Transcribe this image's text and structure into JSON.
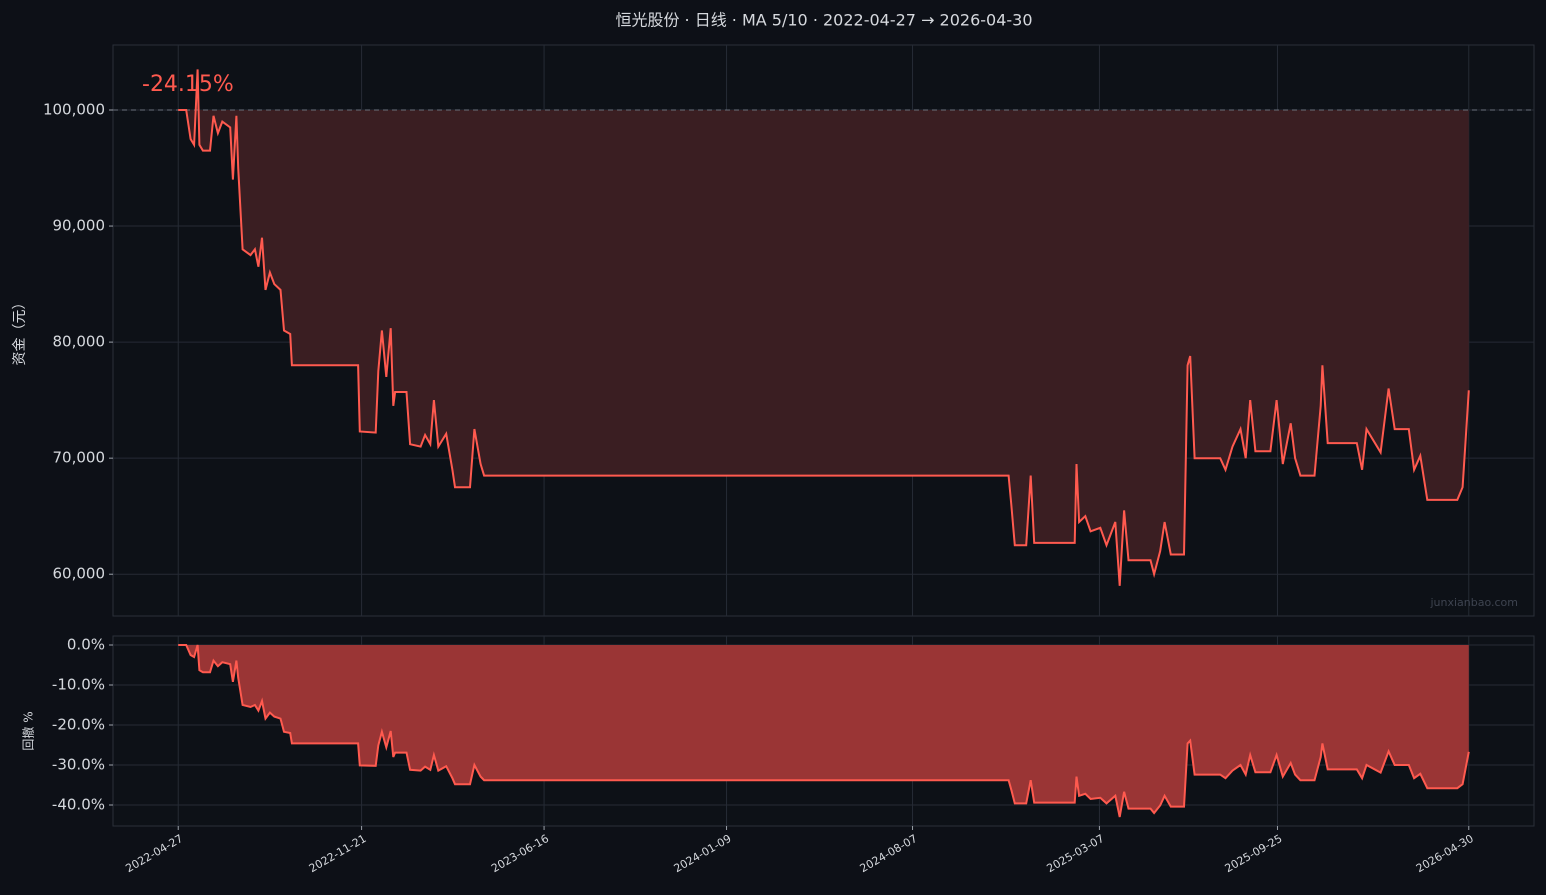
{
  "chart_data": [
    {
      "type": "line",
      "title": "恒光股份 · 日线 · MA 5/10 · 2022-04-27 → 2026-04-30",
      "ylabel": "资金（元）",
      "annotation": "-24.15%",
      "watermark": "junxianbao.com",
      "baseline": 100000,
      "fill": "#3a1e22",
      "x": [
        "2022-04-27",
        "2022-05-06",
        "2022-05-11",
        "2022-05-15",
        "2022-05-19",
        "2022-05-21",
        "2022-05-25",
        "2022-06-02",
        "2022-06-06",
        "2022-06-11",
        "2022-06-16",
        "2022-06-25",
        "2022-06-28",
        "2022-07-02",
        "2022-07-04",
        "2022-07-09",
        "2022-07-18",
        "2022-07-23",
        "2022-07-27",
        "2022-07-31",
        "2022-08-04",
        "2022-08-09",
        "2022-08-14",
        "2022-08-21",
        "2022-08-25",
        "2022-09-01",
        "2022-09-03",
        "2022-11-17",
        "2022-11-19",
        "2022-12-07",
        "2022-12-10",
        "2022-12-14",
        "2022-12-19",
        "2022-12-24",
        "2022-12-27",
        "2022-12-29",
        "2023-01-11",
        "2023-01-15",
        "2023-01-27",
        "2023-02-01",
        "2023-02-07",
        "2023-02-11",
        "2023-02-16",
        "2023-02-25",
        "2023-03-04",
        "2023-03-07",
        "2023-03-24",
        "2023-03-29",
        "2023-04-05",
        "2023-04-09",
        "2024-11-24",
        "2024-11-27",
        "2024-12-01",
        "2024-12-14",
        "2024-12-19",
        "2024-12-23",
        "2025-02-07",
        "2025-02-09",
        "2025-02-12",
        "2025-02-19",
        "2025-02-25",
        "2025-03-08",
        "2025-03-15",
        "2025-03-25",
        "2025-03-30",
        "2025-04-04",
        "2025-04-09",
        "2025-05-04",
        "2025-05-08",
        "2025-05-15",
        "2025-05-20",
        "2025-05-27",
        "2025-06-11",
        "2025-06-15",
        "2025-06-18",
        "2025-06-23",
        "2025-07-22",
        "2025-07-28",
        "2025-08-05",
        "2025-08-14",
        "2025-08-20",
        "2025-08-25",
        "2025-08-31",
        "2025-09-17",
        "2025-09-24",
        "2025-10-01",
        "2025-10-10",
        "2025-10-15",
        "2025-10-21",
        "2025-11-06",
        "2025-11-13",
        "2025-11-15",
        "2025-11-21",
        "2025-12-24",
        "2025-12-30",
        "2026-01-04",
        "2026-01-20",
        "2026-01-29",
        "2026-02-05",
        "2026-02-21",
        "2026-02-27",
        "2026-03-06",
        "2026-03-14",
        "2026-04-17",
        "2026-04-23",
        "2026-04-30"
      ],
      "series": [
        {
          "color": "#ff5a4f",
          "values": [
            100000,
            100000,
            97500,
            97000,
            103500,
            97000,
            96500,
            96500,
            99500,
            98000,
            99000,
            98500,
            94000,
            99500,
            95000,
            88000,
            87500,
            88000,
            86500,
            89000,
            84500,
            86000,
            85000,
            84500,
            81000,
            80700,
            78000,
            78000,
            72300,
            72200,
            77500,
            81000,
            77000,
            81200,
            74500,
            75700,
            75700,
            71200,
            71000,
            72000,
            71200,
            75000,
            71000,
            72100,
            69000,
            67500,
            67500,
            72500,
            69500,
            68500,
            68500,
            66000,
            62500,
            62500,
            68500,
            62700,
            62700,
            69500,
            64500,
            65000,
            63700,
            64000,
            62500,
            64500,
            59000,
            65500,
            61200,
            61200,
            60000,
            62000,
            64500,
            61700,
            61700,
            78000,
            78800,
            70000,
            70000,
            69000,
            71000,
            72500,
            70000,
            75000,
            70600,
            70600,
            75000,
            69500,
            73000,
            70000,
            68500,
            68500,
            74500,
            78000,
            71300,
            71300,
            69000,
            72500,
            70500,
            76000,
            72500,
            72500,
            69000,
            70200,
            66400,
            66400,
            67500,
            75850
          ]
        }
      ],
      "xlim": [
        "2022-02-12",
        "2026-07-13"
      ],
      "ylim": [
        56400,
        105600
      ],
      "xticks": [
        "2022-04-27",
        "2022-11-21",
        "2023-06-16",
        "2024-01-09",
        "2024-08-07",
        "2025-03-07",
        "2025-09-25",
        "2026-04-30"
      ],
      "yticks": [
        {
          "value": 60000,
          "label": "60,000"
        },
        {
          "value": 70000,
          "label": "70,000"
        },
        {
          "value": 80000,
          "label": "80,000"
        },
        {
          "value": 90000,
          "label": "90,000"
        },
        {
          "value": 100000,
          "label": "100,000"
        }
      ],
      "grid": true
    },
    {
      "type": "line",
      "ylabel": "回撤 %",
      "fill": "#9a3535",
      "x": [
        "2022-04-27",
        "2022-05-06",
        "2022-05-11",
        "2022-05-15",
        "2022-05-19",
        "2022-05-21",
        "2022-05-25",
        "2022-06-02",
        "2022-06-06",
        "2022-06-11",
        "2022-06-16",
        "2022-06-25",
        "2022-06-28",
        "2022-07-02",
        "2022-07-04",
        "2022-07-09",
        "2022-07-18",
        "2022-07-23",
        "2022-07-27",
        "2022-07-31",
        "2022-08-04",
        "2022-08-09",
        "2022-08-14",
        "2022-08-21",
        "2022-08-25",
        "2022-09-01",
        "2022-09-03",
        "2022-11-17",
        "2022-11-19",
        "2022-12-07",
        "2022-12-10",
        "2022-12-14",
        "2022-12-19",
        "2022-12-24",
        "2022-12-27",
        "2022-12-29",
        "2023-01-11",
        "2023-01-15",
        "2023-01-27",
        "2023-02-01",
        "2023-02-07",
        "2023-02-11",
        "2023-02-16",
        "2023-02-25",
        "2023-03-04",
        "2023-03-07",
        "2023-03-24",
        "2023-03-29",
        "2023-04-05",
        "2023-04-09",
        "2024-11-24",
        "2024-11-27",
        "2024-12-01",
        "2024-12-14",
        "2024-12-19",
        "2024-12-23",
        "2025-02-07",
        "2025-02-09",
        "2025-02-12",
        "2025-02-19",
        "2025-02-25",
        "2025-03-08",
        "2025-03-15",
        "2025-03-25",
        "2025-03-30",
        "2025-04-04",
        "2025-04-09",
        "2025-05-04",
        "2025-05-08",
        "2025-05-15",
        "2025-05-20",
        "2025-05-27",
        "2025-06-11",
        "2025-06-15",
        "2025-06-18",
        "2025-06-23",
        "2025-07-22",
        "2025-07-28",
        "2025-08-05",
        "2025-08-14",
        "2025-08-20",
        "2025-08-25",
        "2025-08-31",
        "2025-09-17",
        "2025-09-24",
        "2025-10-01",
        "2025-10-10",
        "2025-10-15",
        "2025-10-21",
        "2025-11-06",
        "2025-11-13",
        "2025-11-15",
        "2025-11-21",
        "2025-12-24",
        "2025-12-30",
        "2026-01-04",
        "2026-01-20",
        "2026-01-29",
        "2026-02-05",
        "2026-02-21",
        "2026-02-27",
        "2026-03-06",
        "2026-03-14",
        "2026-04-17",
        "2026-04-23",
        "2026-04-30"
      ],
      "series": [
        {
          "color": "#ff5a4f",
          "values": [
            0,
            0,
            -2.5,
            -3.0,
            0,
            -6.3,
            -6.8,
            -6.8,
            -3.9,
            -5.3,
            -4.3,
            -4.8,
            -9.2,
            -3.9,
            -8.2,
            -15.0,
            -15.5,
            -15.0,
            -16.4,
            -14.0,
            -18.4,
            -16.9,
            -17.9,
            -18.4,
            -21.7,
            -22.0,
            -24.6,
            -24.6,
            -30.1,
            -30.2,
            -25.1,
            -21.7,
            -25.6,
            -21.5,
            -28.0,
            -26.9,
            -26.9,
            -31.2,
            -31.4,
            -30.4,
            -31.2,
            -27.5,
            -31.4,
            -30.3,
            -33.3,
            -34.8,
            -34.8,
            -30.0,
            -32.9,
            -33.8,
            -33.8,
            -36.2,
            -39.6,
            -39.6,
            -33.8,
            -39.4,
            -39.4,
            -32.9,
            -37.7,
            -37.2,
            -38.5,
            -38.2,
            -39.6,
            -37.7,
            -43.0,
            -36.7,
            -40.9,
            -40.9,
            -42.0,
            -40.1,
            -37.7,
            -40.4,
            -40.4,
            -24.6,
            -23.9,
            -32.4,
            -32.4,
            -33.3,
            -31.4,
            -30.0,
            -32.4,
            -27.5,
            -31.8,
            -31.8,
            -27.5,
            -32.9,
            -29.5,
            -32.4,
            -33.8,
            -33.8,
            -28.0,
            -24.6,
            -31.1,
            -31.1,
            -33.3,
            -30.0,
            -31.9,
            -26.6,
            -30.0,
            -30.0,
            -33.3,
            -32.2,
            -35.8,
            -35.8,
            -34.8,
            -26.7
          ]
        }
      ],
      "xlim": [
        "2022-02-12",
        "2026-07-13"
      ],
      "ylim": [
        -45.25,
        2.25
      ],
      "xticks": [
        "2022-04-27",
        "2022-11-21",
        "2023-06-16",
        "2024-01-09",
        "2024-08-07",
        "2025-03-07",
        "2025-09-25",
        "2026-04-30"
      ],
      "yticks": [
        {
          "value": -40,
          "label": "-40.0%"
        },
        {
          "value": -30,
          "label": "-30.0%"
        },
        {
          "value": -20,
          "label": "-20.0%"
        },
        {
          "value": -10,
          "label": "-10.0%"
        },
        {
          "value": 0,
          "label": "0.0%"
        }
      ],
      "grid": true
    }
  ]
}
